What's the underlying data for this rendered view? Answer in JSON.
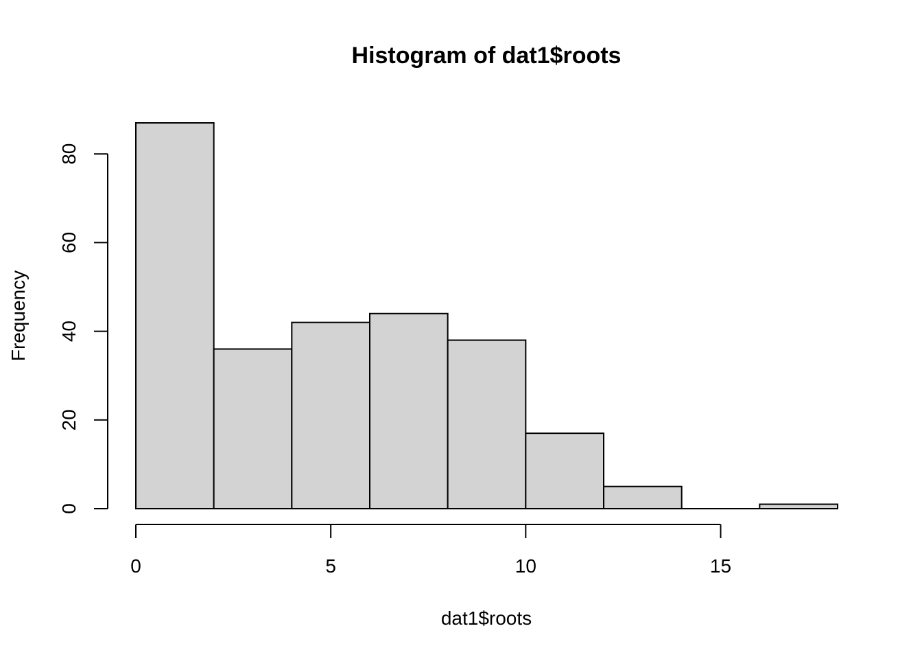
{
  "chart_data": {
    "type": "bar",
    "title": "Histogram of dat1$roots",
    "xlabel": "dat1$roots",
    "ylabel": "Frequency",
    "bins": [
      {
        "from": 0,
        "to": 2,
        "count": 87
      },
      {
        "from": 2,
        "to": 4,
        "count": 36
      },
      {
        "from": 4,
        "to": 6,
        "count": 42
      },
      {
        "from": 6,
        "to": 8,
        "count": 44
      },
      {
        "from": 8,
        "to": 10,
        "count": 38
      },
      {
        "from": 10,
        "to": 12,
        "count": 17
      },
      {
        "from": 12,
        "to": 14,
        "count": 5
      },
      {
        "from": 14,
        "to": 16,
        "count": 0
      },
      {
        "from": 16,
        "to": 18,
        "count": 1
      }
    ],
    "xticks": [
      0,
      5,
      10,
      15
    ],
    "yticks": [
      0,
      20,
      40,
      60,
      80
    ],
    "xlim": [
      0,
      18
    ],
    "ylim": [
      0,
      87
    ],
    "grid": false,
    "colors": {
      "bar_fill": "#d3d3d3",
      "bar_stroke": "#000000"
    }
  }
}
